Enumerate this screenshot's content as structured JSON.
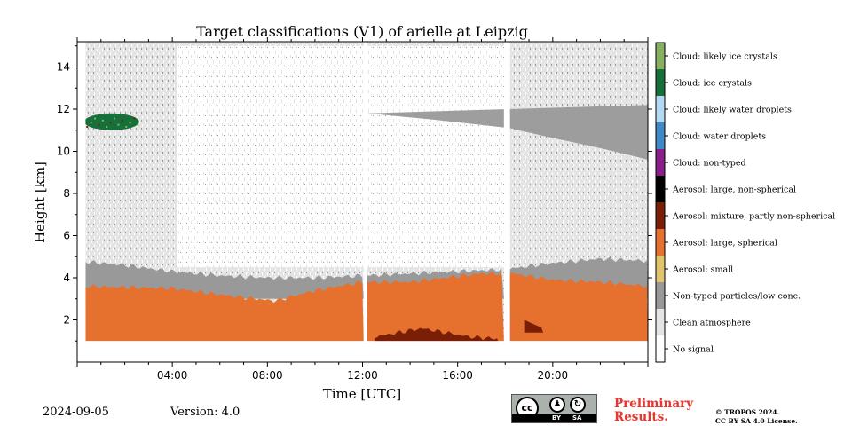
{
  "chart_data": {
    "type": "heatmap",
    "title": "Target classifications (V1) of arielle at Leipzig",
    "xlabel": "Time [UTC]",
    "ylabel": "Height [km]",
    "x_tick_labels": [
      "04:00",
      "08:00",
      "12:00",
      "16:00",
      "20:00"
    ],
    "x_ticks_hours": [
      4,
      8,
      12,
      16,
      20
    ],
    "xlim_hours": [
      0,
      24
    ],
    "y_tick_labels": [
      "2",
      "4",
      "6",
      "8",
      "10",
      "12",
      "14"
    ],
    "y_ticks_km": [
      2,
      4,
      6,
      8,
      10,
      12,
      14
    ],
    "ylim_km": [
      0,
      15.2
    ],
    "data_gaps_hours": [
      [
        12.05,
        12.2
      ],
      [
        17.95,
        18.2
      ]
    ],
    "classes": [
      {
        "label": "No signal",
        "color": "#ffffff"
      },
      {
        "label": "Clean atmosphere",
        "color": "#e4e4e4"
      },
      {
        "label": "Non-typed particles/low conc.",
        "color": "#999999"
      },
      {
        "label": "Aerosol: small",
        "color": "#e2c46d"
      },
      {
        "label": "Aerosol: large, spherical",
        "color": "#e6702e"
      },
      {
        "label": "Aerosol: mixture, partly non-spherical",
        "color": "#7a1f06"
      },
      {
        "label": "Aerosol: large, non-spherical",
        "color": "#000000"
      },
      {
        "label": "Cloud: non-typed",
        "color": "#8a1e8a"
      },
      {
        "label": "Cloud: water droplets",
        "color": "#3f89c7"
      },
      {
        "label": "Cloud: likely water droplets",
        "color": "#b3daf5"
      },
      {
        "label": "Cloud: ice crystals",
        "color": "#16703a"
      },
      {
        "label": "Cloud: likely ice crystals",
        "color": "#86b15e"
      }
    ],
    "layers": [
      {
        "class": "Aerosol: large, spherical",
        "description": "boundary layer",
        "hours": [
          0,
          4,
          6,
          8.3,
          10,
          12,
          14,
          17,
          18.3,
          20,
          22,
          24
        ],
        "top_km": [
          3.6,
          3.5,
          3.2,
          2.9,
          3.4,
          3.8,
          3.8,
          4.2,
          4.2,
          3.9,
          3.8,
          3.6
        ]
      },
      {
        "class": "Non-typed particles/low conc.",
        "description": "residual layer",
        "hours": [
          0,
          2,
          4,
          6,
          8,
          10,
          12,
          14,
          16,
          18,
          20,
          22,
          24
        ],
        "top_km": [
          4.8,
          4.6,
          4.3,
          4.1,
          4.0,
          4.0,
          4.1,
          4.2,
          4.3,
          4.4,
          4.7,
          4.9,
          4.8
        ]
      },
      {
        "class": "Aerosol: mixture, partly non-spherical",
        "description": "near-ground patch",
        "hours": [
          12.5,
          13.5,
          14.5,
          15.5,
          16.5,
          17.7
        ],
        "top_km": [
          1.2,
          1.4,
          1.6,
          1.4,
          1.2,
          1.1
        ]
      },
      {
        "class": "Cloud: ice crystals",
        "description": "ice cloud",
        "hours": [
          0.3,
          2.6
        ],
        "km": [
          11.0,
          11.8
        ]
      }
    ],
    "date": "2024-09-05",
    "version": "Version: 4.0"
  },
  "footer": {
    "date": "2024-09-05",
    "version": "Version: 4.0",
    "preliminary_line1": "Preliminary",
    "preliminary_line2": "Results.",
    "copyright_line1": "© TROPOS 2024.",
    "copyright_line2": "CC BY SA 4.0 License.",
    "badge_cc": "cc",
    "badge_by": "BY",
    "badge_sa": "SA"
  }
}
